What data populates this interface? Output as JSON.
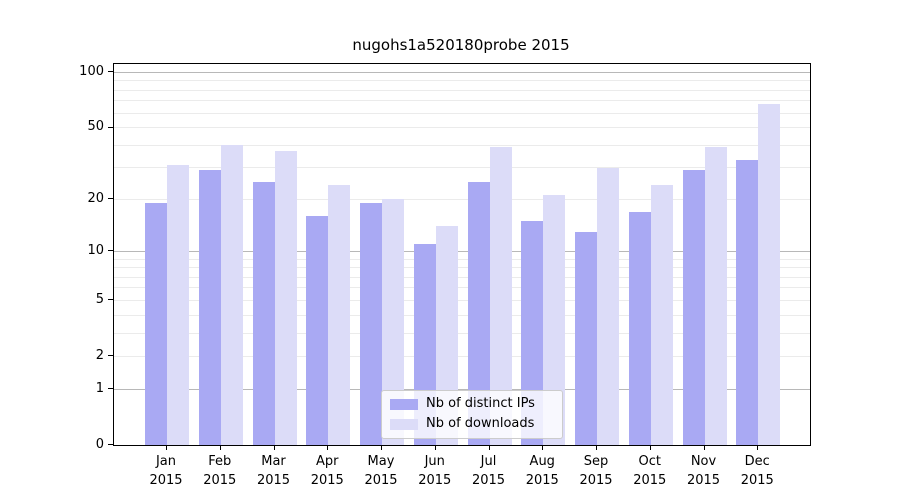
{
  "title": "nugohs1a520180probe 2015",
  "chart_data": {
    "type": "bar",
    "title": "nugohs1a520180probe 2015",
    "categories": [
      "Jan",
      "Feb",
      "Mar",
      "Apr",
      "May",
      "Jun",
      "Jul",
      "Aug",
      "Sep",
      "Oct",
      "Nov",
      "Dec"
    ],
    "x_tick_second_line": "2015",
    "series": [
      {
        "name": "Nb of distinct IPs",
        "color": "#a9a9f3",
        "values": [
          19,
          29,
          25,
          16,
          19,
          11,
          25,
          15,
          13,
          17,
          29,
          33
        ]
      },
      {
        "name": "Nb of downloads",
        "color": "#dcdcf8",
        "values": [
          31,
          40,
          37,
          24,
          20,
          14,
          39,
          21,
          30,
          24,
          39,
          67
        ]
      }
    ],
    "yscale": "log10(1+value)",
    "ylim": [
      0,
      100
    ],
    "yticks": [
      0,
      1,
      2,
      5,
      10,
      20,
      50,
      100
    ],
    "major_gridlines": [
      1,
      10,
      100
    ],
    "minor_gridlines": [
      2,
      3,
      4,
      5,
      6,
      7,
      8,
      9,
      20,
      30,
      40,
      50,
      60,
      70,
      80,
      90
    ],
    "grid": "horizontal only, no vertical gridlines",
    "legend_position": "lower center inside plot",
    "colors": {
      "distinct_ips_bar": "#a9a9f3",
      "downloads_bar": "#dcdcf8",
      "axis": "#000000",
      "major_grid": "#b8b8b8",
      "minor_grid": "#ebebeb",
      "legend_border": "#cccccc"
    }
  }
}
